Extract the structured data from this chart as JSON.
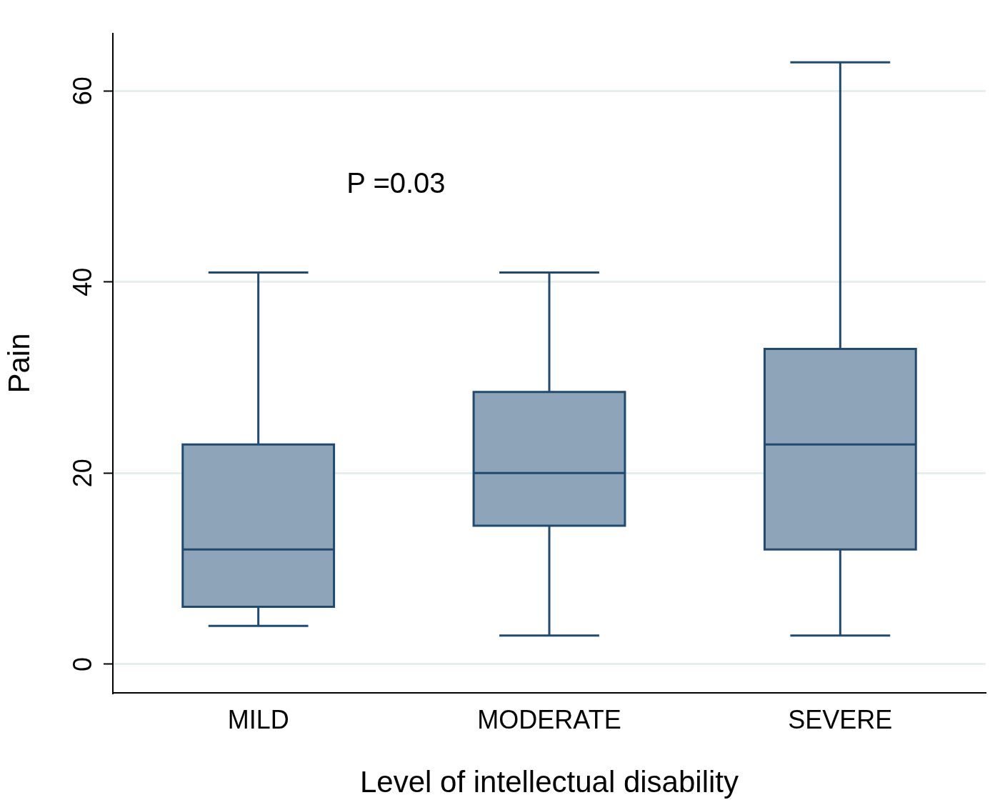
{
  "chart_data": {
    "type": "box",
    "xlabel": "Level of intellectual disability",
    "ylabel": "Pain",
    "categories": [
      "MILD",
      "MODERATE",
      "SEVERE"
    ],
    "boxes": [
      {
        "low": 4,
        "q1": 6,
        "median": 12,
        "q3": 23,
        "high": 41
      },
      {
        "low": 3,
        "q1": 14.5,
        "median": 20,
        "q3": 28.5,
        "high": 41
      },
      {
        "low": 3,
        "q1": 12,
        "median": 23,
        "q3": 33,
        "high": 63
      }
    ],
    "color": "#8ea5b9",
    "ylim": [
      -3,
      66
    ],
    "yticks": [
      0,
      20,
      40,
      60
    ],
    "grid": "y",
    "legend": false,
    "annotations": [
      "P =0.03"
    ]
  }
}
